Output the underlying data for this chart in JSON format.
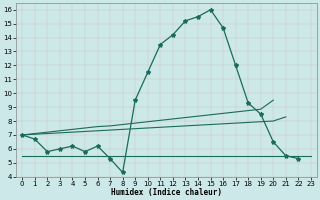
{
  "x": [
    0,
    1,
    2,
    3,
    4,
    5,
    6,
    7,
    8,
    9,
    10,
    11,
    12,
    13,
    14,
    15,
    16,
    17,
    18,
    19,
    20,
    21,
    22,
    23
  ],
  "line_main": [
    7.0,
    6.7,
    5.8,
    6.0,
    6.2,
    5.8,
    6.2,
    5.3,
    4.3,
    9.5,
    11.5,
    13.5,
    14.2,
    15.2,
    15.5,
    16.0,
    14.7,
    12.0,
    9.3,
    8.5,
    6.5,
    5.5,
    5.3,
    null
  ],
  "line_upper": [
    7.0,
    7.1,
    7.2,
    7.3,
    7.4,
    7.5,
    7.6,
    7.65,
    7.75,
    7.85,
    7.95,
    8.05,
    8.15,
    8.25,
    8.35,
    8.45,
    8.55,
    8.65,
    8.75,
    8.85,
    9.5,
    null,
    null,
    null
  ],
  "line_lower": [
    7.0,
    7.05,
    7.1,
    7.15,
    7.2,
    7.25,
    7.3,
    7.35,
    7.4,
    7.45,
    7.5,
    7.55,
    7.6,
    7.65,
    7.7,
    7.75,
    7.8,
    7.85,
    7.9,
    7.95,
    8.0,
    8.3,
    null,
    null
  ],
  "line_flat": [
    5.5,
    5.5,
    5.5,
    5.5,
    5.5,
    5.5,
    5.5,
    5.5,
    5.5,
    5.5,
    5.5,
    5.5,
    5.5,
    5.5,
    5.5,
    5.5,
    5.5,
    5.5,
    5.5,
    5.5,
    5.5,
    5.5,
    5.5,
    5.5
  ],
  "bg_color": "#cce8e8",
  "grid_color": "#aacfcf",
  "line_color": "#1a6b5a",
  "xlabel": "Humidex (Indice chaleur)",
  "ylim": [
    4,
    16.5
  ],
  "xlim": [
    -0.5,
    23.5
  ],
  "yticks": [
    4,
    5,
    6,
    7,
    8,
    9,
    10,
    11,
    12,
    13,
    14,
    15,
    16
  ],
  "xticks": [
    0,
    1,
    2,
    3,
    4,
    5,
    6,
    7,
    8,
    9,
    10,
    11,
    12,
    13,
    14,
    15,
    16,
    17,
    18,
    19,
    20,
    21,
    22,
    23
  ]
}
